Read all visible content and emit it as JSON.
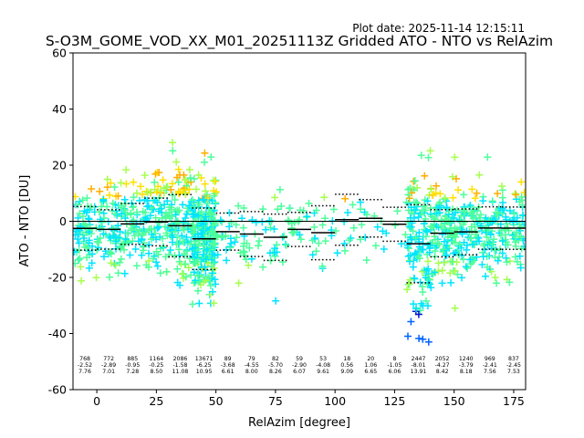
{
  "plot_date": "Plot date: 2025-11-14 12:15:11",
  "chart_data": {
    "type": "scatter",
    "title": "S-O3M_GOME_VOD_XX_M01_20251113Z Gridded ATO - NTO vs RelAzim",
    "xlabel": "RelAzim [degree]",
    "ylabel": "ATO - NTO [DU]",
    "xlim": [
      -10,
      180
    ],
    "ylim": [
      -60,
      60
    ],
    "x_ticks": [
      0,
      25,
      50,
      75,
      100,
      125,
      150,
      175
    ],
    "y_ticks": [
      -60,
      -40,
      -20,
      0,
      20,
      40,
      60
    ],
    "grid": false,
    "zero_line": 0,
    "bins": [
      {
        "x": -5,
        "count": "768",
        "mean": "-2.52",
        "std": "7.76"
      },
      {
        "x": 5,
        "count": "772",
        "mean": "-2.89",
        "std": "7.01"
      },
      {
        "x": 15,
        "count": "885",
        "mean": "-0.95",
        "std": "7.28"
      },
      {
        "x": 25,
        "count": "1164",
        "mean": "-0.25",
        "std": "8.50"
      },
      {
        "x": 35,
        "count": "2086",
        "mean": "-1.58",
        "std": "11.08"
      },
      {
        "x": 45,
        "count": "13671",
        "mean": "-6.25",
        "std": "10.95"
      },
      {
        "x": 55,
        "count": "89",
        "mean": "-3.68",
        "std": "6.61"
      },
      {
        "x": 65,
        "count": "79",
        "mean": "-4.55",
        "std": "8.00"
      },
      {
        "x": 75,
        "count": "82",
        "mean": "-5.70",
        "std": "8.26"
      },
      {
        "x": 85,
        "count": "59",
        "mean": "-2.90",
        "std": "6.07"
      },
      {
        "x": 95,
        "count": "53",
        "mean": "-4.08",
        "std": "9.61"
      },
      {
        "x": 105,
        "count": "18",
        "mean": "0.56",
        "std": "9.09"
      },
      {
        "x": 115,
        "count": "20",
        "mean": "1.06",
        "std": "6.65"
      },
      {
        "x": 125,
        "count": "8",
        "mean": "-1.05",
        "std": "6.06"
      },
      {
        "x": 135,
        "count": "2447",
        "mean": "-8.01",
        "std": "13.91"
      },
      {
        "x": 145,
        "count": "2052",
        "mean": "-4.27",
        "std": "8.42"
      },
      {
        "x": 155,
        "count": "1240",
        "mean": "-3.79",
        "std": "8.18"
      },
      {
        "x": 165,
        "count": "969",
        "mean": "-2.41",
        "std": "7.56"
      },
      {
        "x": 175,
        "count": "837",
        "mean": "-2.45",
        "std": "7.53"
      }
    ],
    "marker": "+",
    "marker_colors": [
      "#00e5ff",
      "#4dff9a",
      "#a6ff4d",
      "#ffe100",
      "#ffae00",
      "#0064ff",
      "#0010d0"
    ],
    "mean_line_color": "#000000",
    "std_line_color": "#000000"
  }
}
